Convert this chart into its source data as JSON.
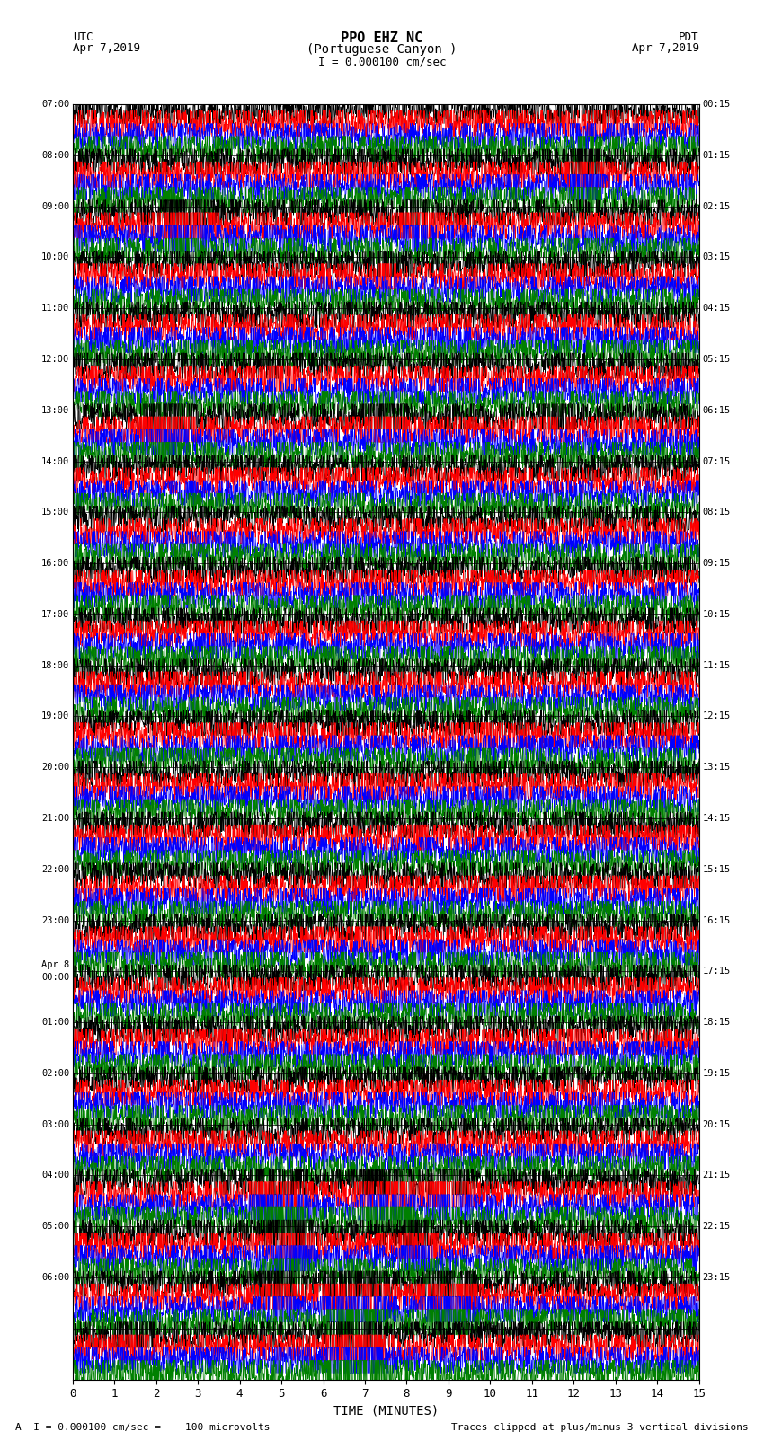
{
  "title_line1": "PPO EHZ NC",
  "title_line2": "(Portuguese Canyon )",
  "scale_label": "I = 0.000100 cm/sec",
  "utc_label": "UTC",
  "pdt_label": "PDT",
  "date_left": "Apr 7,2019",
  "date_right": "Apr 7,2019",
  "xlabel": "TIME (MINUTES)",
  "footer_left": "A  I = 0.000100 cm/sec =    100 microvolts",
  "footer_right": "Traces clipped at plus/minus 3 vertical divisions",
  "xlim": [
    0,
    15
  ],
  "xticks": [
    0,
    1,
    2,
    3,
    4,
    5,
    6,
    7,
    8,
    9,
    10,
    11,
    12,
    13,
    14,
    15
  ],
  "n_hours": 25,
  "colors_cycle": [
    "black",
    "red",
    "blue",
    "green"
  ],
  "background_color": "white",
  "left_times_utc": [
    "07:00",
    "08:00",
    "09:00",
    "10:00",
    "11:00",
    "12:00",
    "13:00",
    "14:00",
    "15:00",
    "16:00",
    "17:00",
    "18:00",
    "19:00",
    "20:00",
    "21:00",
    "22:00",
    "23:00",
    "Apr 8\n00:00",
    "01:00",
    "02:00",
    "03:00",
    "04:00",
    "05:00",
    "06:00"
  ],
  "right_times_pdt": [
    "00:15",
    "01:15",
    "02:15",
    "03:15",
    "04:15",
    "05:15",
    "06:15",
    "07:15",
    "08:15",
    "09:15",
    "10:15",
    "11:15",
    "12:15",
    "13:15",
    "14:15",
    "15:15",
    "16:15",
    "17:15",
    "18:15",
    "19:15",
    "20:15",
    "21:15",
    "22:15",
    "23:15"
  ],
  "figsize": [
    8.5,
    16.13
  ],
  "dpi": 100
}
